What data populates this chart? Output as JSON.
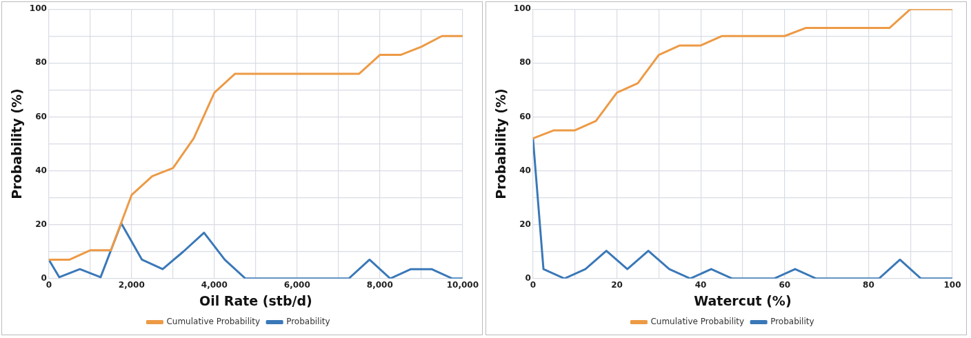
{
  "chart_data": [
    {
      "type": "line",
      "xlabel": "Oil Rate (stb/d)",
      "ylabel": "Probability (%)",
      "xlim": [
        0,
        10000
      ],
      "xticks": [
        0,
        {
          "value": 1000,
          "label": null
        },
        {
          "value": 2000,
          "label": "2,000"
        },
        {
          "value": 3000,
          "label": null
        },
        {
          "value": 4000,
          "label": "4,000"
        },
        {
          "value": 5000,
          "label": null
        },
        {
          "value": 6000,
          "label": "6,000"
        },
        {
          "value": 7000,
          "label": null
        },
        {
          "value": 8000,
          "label": "8,000"
        },
        {
          "value": 9000,
          "label": null
        },
        {
          "value": 10000,
          "label": "10,000"
        }
      ],
      "ylim": [
        0,
        100
      ],
      "yticks": [
        0,
        {
          "value": 10,
          "label": null
        },
        20,
        {
          "value": 30,
          "label": null
        },
        40,
        {
          "value": 50,
          "label": null
        },
        60,
        {
          "value": 70,
          "label": null
        },
        80,
        {
          "value": 90,
          "label": null
        },
        100
      ],
      "grid": true,
      "legend": "bottom",
      "marker": "none",
      "line_style": "solid",
      "series": [
        {
          "name": "Cumulative Probability",
          "color": "#ed9a45",
          "x": [
            0,
            500,
            1000,
            1500,
            2000,
            2500,
            3000,
            3500,
            4000,
            4500,
            7500,
            8000,
            8500,
            9000,
            9500,
            10000
          ],
          "values": [
            7,
            7,
            10.5,
            10.5,
            31,
            38,
            41,
            52,
            69,
            76,
            76,
            83,
            83,
            86,
            90,
            90
          ]
        },
        {
          "name": "Probability",
          "color": "#3a78b8",
          "x": [
            0,
            250,
            750,
            1250,
            1750,
            2250,
            2750,
            3250,
            3750,
            4250,
            4750,
            7250,
            7750,
            8250,
            8750,
            9250,
            9750,
            10000
          ],
          "values": [
            7,
            0.5,
            3.5,
            0.5,
            20.5,
            7,
            3.5,
            10,
            17,
            7,
            0,
            0,
            7,
            0,
            3.5,
            3.5,
            0,
            0
          ]
        }
      ]
    },
    {
      "type": "line",
      "xlabel": "Watercut (%)",
      "ylabel": "Probability (%)",
      "xlim": [
        0,
        100
      ],
      "xticks": [
        0,
        {
          "value": 10,
          "label": null
        },
        20,
        {
          "value": 30,
          "label": null
        },
        40,
        {
          "value": 50,
          "label": null
        },
        60,
        {
          "value": 70,
          "label": null
        },
        80,
        {
          "value": 90,
          "label": null
        },
        100
      ],
      "ylim": [
        0,
        100
      ],
      "yticks": [
        0,
        {
          "value": 10,
          "label": null
        },
        20,
        {
          "value": 30,
          "label": null
        },
        40,
        {
          "value": 50,
          "label": null
        },
        60,
        {
          "value": 70,
          "label": null
        },
        80,
        {
          "value": 90,
          "label": null
        },
        100
      ],
      "grid": true,
      "legend": "bottom",
      "marker": "none",
      "line_style": "solid",
      "series": [
        {
          "name": "Cumulative Probability",
          "color": "#ed9a45",
          "x": [
            0,
            5,
            10,
            15,
            20,
            25,
            30,
            35,
            40,
            45,
            60,
            65,
            85,
            90,
            100
          ],
          "values": [
            52,
            55,
            55,
            58.5,
            69,
            72.5,
            83,
            86.5,
            86.5,
            90,
            90,
            93,
            93,
            100,
            100
          ]
        },
        {
          "name": "Probability",
          "color": "#3a78b8",
          "x": [
            0,
            2.5,
            7.5,
            12.5,
            17.5,
            22.5,
            27.5,
            32.5,
            37.5,
            42.5,
            47.5,
            57.5,
            62.5,
            67.5,
            82.5,
            87.5,
            92.5,
            100
          ],
          "values": [
            52,
            3.5,
            0,
            3.5,
            10.3,
            3.5,
            10.3,
            3.5,
            0,
            3.5,
            0,
            0,
            3.5,
            0,
            0,
            7,
            0,
            0
          ]
        }
      ]
    }
  ]
}
